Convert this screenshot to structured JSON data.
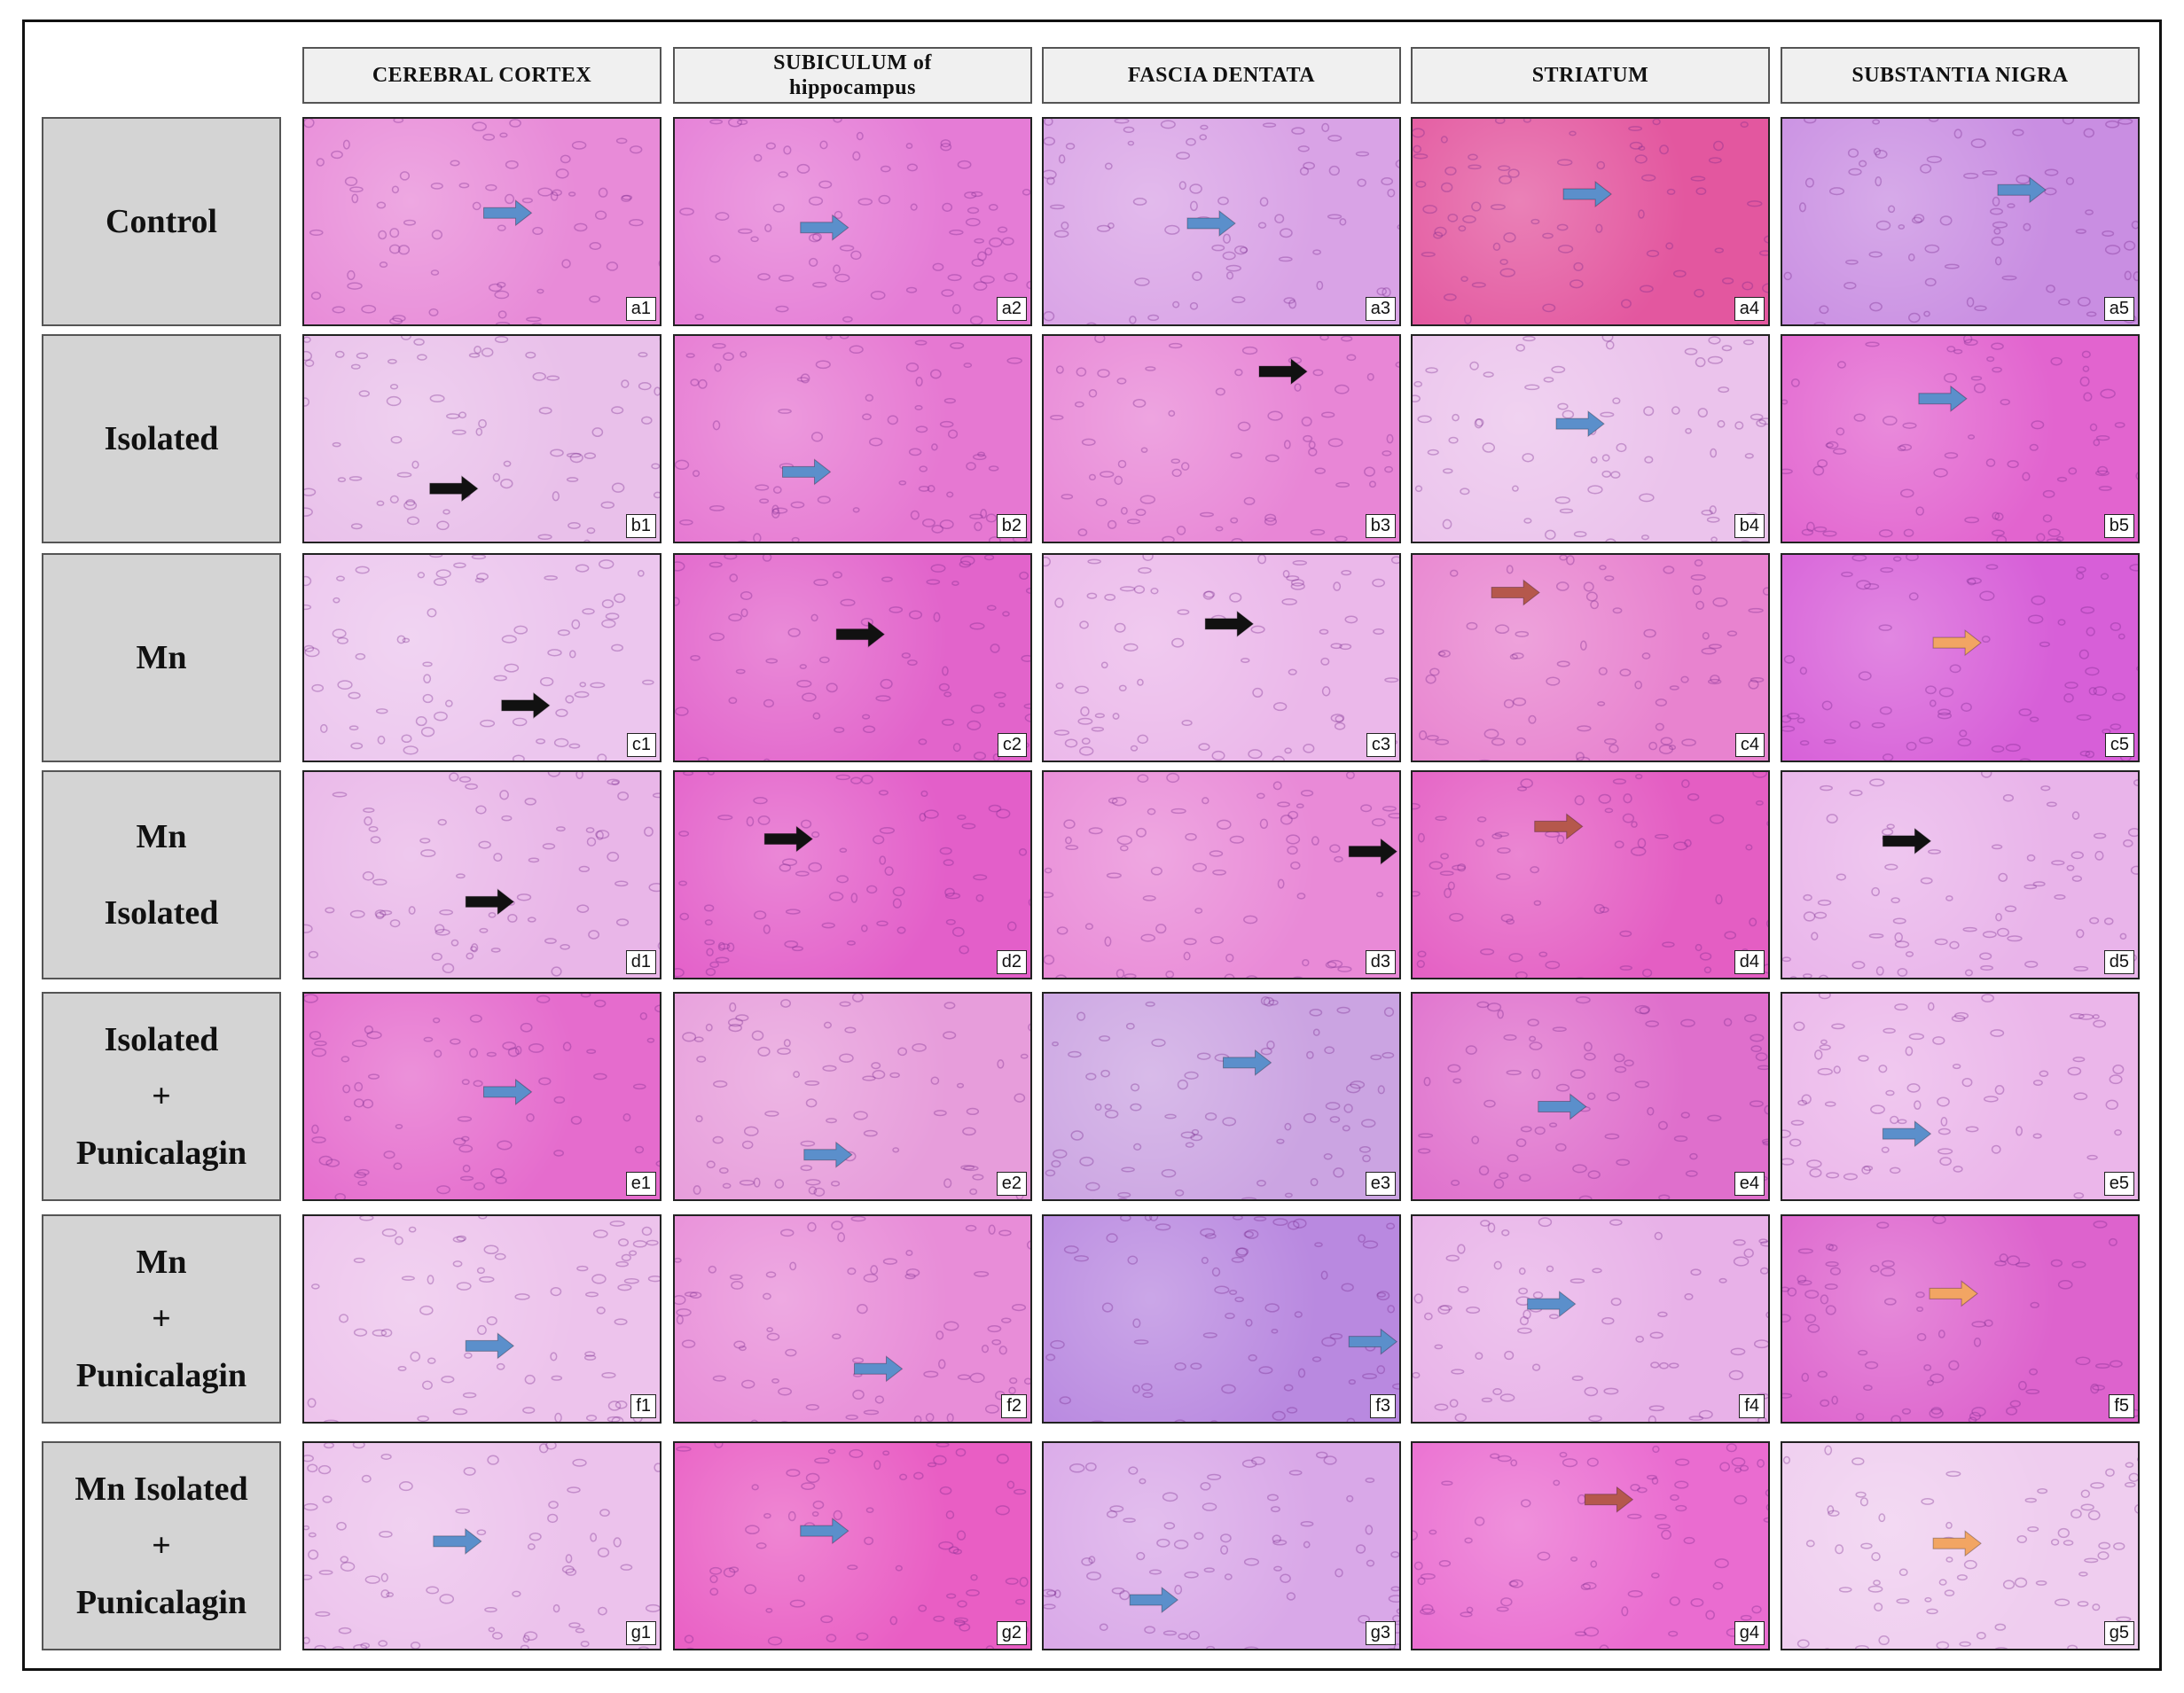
{
  "columns": [
    [
      "CEREBRAL CORTEX"
    ],
    [
      "SUBICULUM of",
      "hippocampus"
    ],
    [
      "FASCIA DENTATA"
    ],
    [
      "STRIATUM"
    ],
    [
      "SUBSTANTIA NIGRA"
    ]
  ],
  "rows": [
    {
      "label": [
        "Control"
      ],
      "panels": [
        "a1",
        "a2",
        "a3",
        "a4",
        "a5"
      ]
    },
    {
      "label": [
        "Isolated"
      ],
      "panels": [
        "b1",
        "b2",
        "b3",
        "b4",
        "b5"
      ]
    },
    {
      "label": [
        "Mn"
      ],
      "panels": [
        "c1",
        "c2",
        "c3",
        "c4",
        "c5"
      ]
    },
    {
      "label": [
        "Mn",
        "Isolated"
      ],
      "panels": [
        "d1",
        "d2",
        "d3",
        "d4",
        "d5"
      ]
    },
    {
      "label": [
        "Isolated",
        "+",
        "Punicalagin"
      ],
      "panels": [
        "e1",
        "e2",
        "e3",
        "e4",
        "e5"
      ]
    },
    {
      "label": [
        "Mn",
        "+",
        "Punicalagin"
      ],
      "panels": [
        "f1",
        "f2",
        "f3",
        "f4",
        "f5"
      ]
    },
    {
      "label": [
        "Mn Isolated",
        "+",
        "Punicalagin"
      ],
      "panels": [
        "g1",
        "g2",
        "g3",
        "g4",
        "g5"
      ]
    }
  ]
}
